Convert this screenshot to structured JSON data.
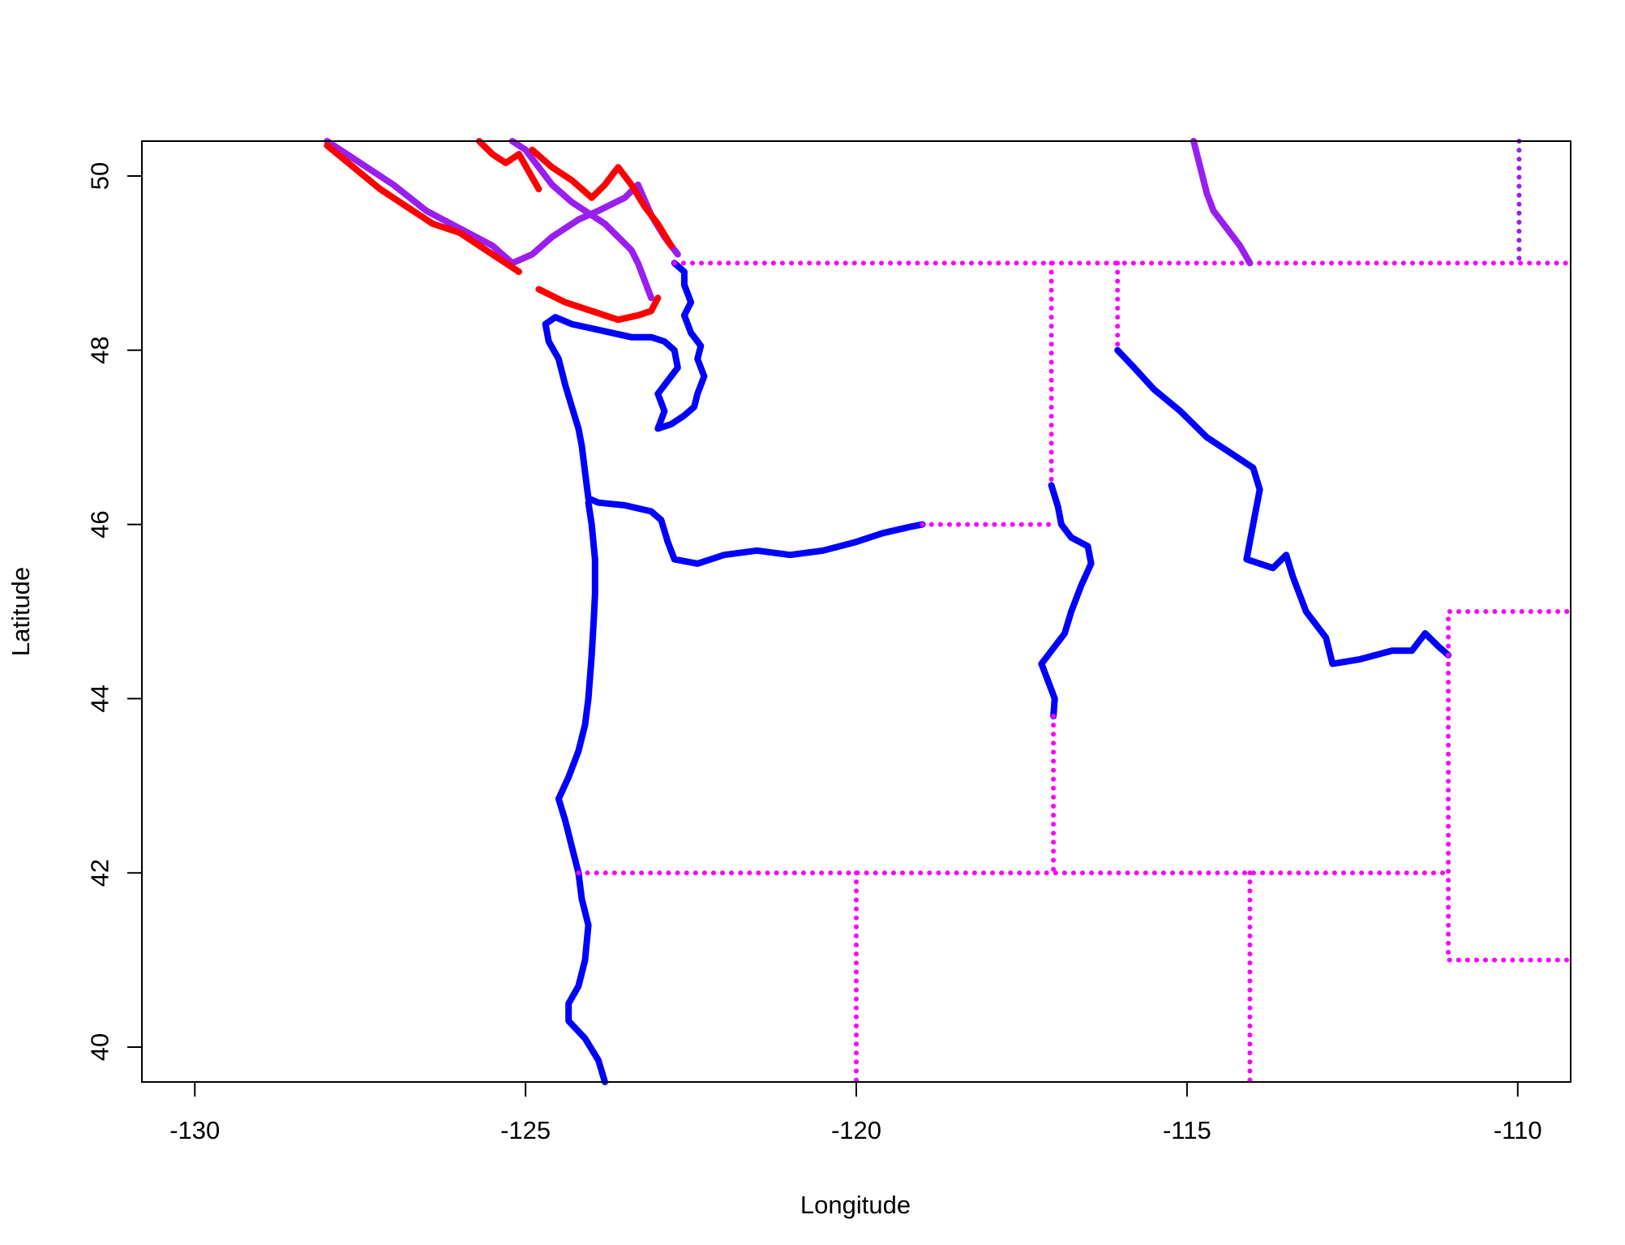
{
  "chart_data": {
    "type": "scatter",
    "title": "",
    "xlabel": "Longitude",
    "ylabel": "Latitude",
    "xlim": [
      -130.8,
      -109.2
    ],
    "ylim": [
      39.6,
      50.4
    ],
    "x_ticks": [
      "-130",
      "-125",
      "-120",
      "-115",
      "-110"
    ],
    "y_ticks": [
      "40",
      "42",
      "44",
      "46",
      "48",
      "50"
    ],
    "grid": false,
    "legend": "none",
    "colors": {
      "red": "#ff0000",
      "purple": "#9a1ef0",
      "magenta": "#ff00ff",
      "blue": "#0000ff"
    },
    "series": [
      {
        "color": "purple",
        "style": "line",
        "points": [
          [
            -128.0,
            50.4
          ],
          [
            -127.5,
            50.15
          ],
          [
            -127.0,
            49.9
          ],
          [
            -126.5,
            49.6
          ],
          [
            -126.0,
            49.4
          ],
          [
            -125.5,
            49.2
          ],
          [
            -125.2,
            49.0
          ],
          [
            -124.9,
            49.1
          ],
          [
            -124.6,
            49.3
          ],
          [
            -124.2,
            49.5
          ],
          [
            -123.9,
            49.6
          ],
          [
            -123.5,
            49.75
          ],
          [
            -123.3,
            49.9
          ],
          [
            -123.1,
            49.55
          ],
          [
            -122.9,
            49.3
          ],
          [
            -122.7,
            49.1
          ]
        ]
      },
      {
        "color": "purple",
        "style": "line",
        "points": [
          [
            -125.2,
            50.4
          ],
          [
            -125.0,
            50.3
          ],
          [
            -124.8,
            50.1
          ],
          [
            -124.6,
            49.9
          ],
          [
            -124.3,
            49.7
          ],
          [
            -124.0,
            49.55
          ],
          [
            -123.8,
            49.45
          ],
          [
            -123.6,
            49.3
          ],
          [
            -123.4,
            49.15
          ],
          [
            -123.3,
            49.0
          ],
          [
            -123.2,
            48.8
          ],
          [
            -123.1,
            48.6
          ]
        ]
      },
      {
        "color": "red",
        "style": "line",
        "points": [
          [
            -128.0,
            50.35
          ],
          [
            -127.6,
            50.1
          ],
          [
            -127.2,
            49.85
          ],
          [
            -126.8,
            49.65
          ],
          [
            -126.4,
            49.45
          ],
          [
            -126.0,
            49.35
          ],
          [
            -125.7,
            49.2
          ],
          [
            -125.4,
            49.05
          ],
          [
            -125.1,
            48.9
          ]
        ]
      },
      {
        "color": "red",
        "style": "line",
        "points": [
          [
            -124.8,
            48.7
          ],
          [
            -124.4,
            48.55
          ],
          [
            -124.0,
            48.45
          ],
          [
            -123.6,
            48.35
          ],
          [
            -123.3,
            48.4
          ],
          [
            -123.1,
            48.45
          ],
          [
            -123.0,
            48.6
          ]
        ]
      },
      {
        "color": "red",
        "style": "line",
        "points": [
          [
            -124.9,
            50.3
          ],
          [
            -124.6,
            50.1
          ],
          [
            -124.3,
            49.95
          ],
          [
            -124.0,
            49.75
          ],
          [
            -123.8,
            49.9
          ],
          [
            -123.6,
            50.1
          ],
          [
            -123.4,
            49.9
          ],
          [
            -123.2,
            49.65
          ],
          [
            -123.0,
            49.45
          ],
          [
            -122.8,
            49.2
          ]
        ]
      },
      {
        "color": "red",
        "style": "line",
        "points": [
          [
            -125.7,
            50.4
          ],
          [
            -125.5,
            50.25
          ],
          [
            -125.3,
            50.15
          ],
          [
            -125.1,
            50.25
          ],
          [
            -124.95,
            50.05
          ],
          [
            -124.8,
            49.85
          ]
        ]
      },
      {
        "color": "blue",
        "style": "line",
        "points": [
          [
            -122.75,
            49.0
          ],
          [
            -122.6,
            48.9
          ],
          [
            -122.6,
            48.75
          ],
          [
            -122.5,
            48.55
          ],
          [
            -122.6,
            48.4
          ],
          [
            -122.5,
            48.2
          ],
          [
            -122.35,
            48.05
          ],
          [
            -122.4,
            47.9
          ],
          [
            -122.3,
            47.7
          ],
          [
            -122.4,
            47.5
          ],
          [
            -122.45,
            47.35
          ],
          [
            -122.6,
            47.25
          ],
          [
            -122.8,
            47.15
          ],
          [
            -123.0,
            47.1
          ],
          [
            -122.9,
            47.3
          ],
          [
            -123.0,
            47.5
          ],
          [
            -122.85,
            47.65
          ],
          [
            -122.7,
            47.8
          ],
          [
            -122.75,
            48.0
          ],
          [
            -122.9,
            48.1
          ],
          [
            -123.1,
            48.15
          ],
          [
            -123.4,
            48.15
          ],
          [
            -123.7,
            48.2
          ],
          [
            -124.0,
            48.25
          ],
          [
            -124.3,
            48.3
          ],
          [
            -124.55,
            48.38
          ],
          [
            -124.7,
            48.3
          ],
          [
            -124.65,
            48.1
          ],
          [
            -124.5,
            47.9
          ],
          [
            -124.4,
            47.6
          ],
          [
            -124.3,
            47.35
          ],
          [
            -124.2,
            47.1
          ],
          [
            -124.15,
            46.9
          ],
          [
            -124.1,
            46.6
          ],
          [
            -124.05,
            46.3
          ],
          [
            -123.9,
            46.25
          ],
          [
            -123.5,
            46.22
          ],
          [
            -123.1,
            46.15
          ],
          [
            -122.95,
            46.05
          ],
          [
            -122.85,
            45.8
          ],
          [
            -122.75,
            45.6
          ],
          [
            -122.4,
            45.55
          ],
          [
            -122.0,
            45.65
          ],
          [
            -121.5,
            45.7
          ],
          [
            -121.0,
            45.65
          ],
          [
            -120.5,
            45.7
          ],
          [
            -120.0,
            45.8
          ],
          [
            -119.6,
            45.9
          ],
          [
            -119.2,
            45.97
          ],
          [
            -119.0,
            46.0
          ]
        ]
      },
      {
        "color": "blue",
        "style": "line",
        "points": [
          [
            -124.05,
            46.25
          ],
          [
            -124.0,
            46.0
          ],
          [
            -123.95,
            45.6
          ],
          [
            -123.95,
            45.2
          ],
          [
            -123.97,
            44.9
          ],
          [
            -124.0,
            44.5
          ],
          [
            -124.05,
            44.0
          ],
          [
            -124.1,
            43.7
          ],
          [
            -124.2,
            43.4
          ],
          [
            -124.35,
            43.1
          ],
          [
            -124.5,
            42.85
          ],
          [
            -124.4,
            42.6
          ],
          [
            -124.3,
            42.3
          ],
          [
            -124.2,
            42.0
          ],
          [
            -124.15,
            41.7
          ],
          [
            -124.05,
            41.4
          ],
          [
            -124.1,
            41.0
          ],
          [
            -124.2,
            40.7
          ],
          [
            -124.35,
            40.5
          ],
          [
            -124.35,
            40.3
          ],
          [
            -124.1,
            40.1
          ],
          [
            -123.9,
            39.85
          ],
          [
            -123.8,
            39.6
          ]
        ]
      },
      {
        "color": "blue",
        "style": "line",
        "points": [
          [
            -117.05,
            46.45
          ],
          [
            -116.95,
            46.2
          ],
          [
            -116.9,
            46.0
          ],
          [
            -116.75,
            45.85
          ],
          [
            -116.5,
            45.75
          ],
          [
            -116.45,
            45.55
          ],
          [
            -116.6,
            45.3
          ],
          [
            -116.75,
            45.0
          ],
          [
            -116.85,
            44.75
          ],
          [
            -117.0,
            44.6
          ],
          [
            -117.2,
            44.4
          ],
          [
            -117.1,
            44.2
          ],
          [
            -117.0,
            44.0
          ],
          [
            -117.02,
            43.8
          ]
        ]
      },
      {
        "color": "blue",
        "style": "line",
        "points": [
          [
            -116.05,
            48.0
          ],
          [
            -115.8,
            47.8
          ],
          [
            -115.5,
            47.55
          ],
          [
            -115.1,
            47.3
          ],
          [
            -114.7,
            47.0
          ],
          [
            -114.3,
            46.8
          ],
          [
            -114.0,
            46.65
          ],
          [
            -113.9,
            46.4
          ],
          [
            -114.0,
            46.0
          ],
          [
            -114.1,
            45.6
          ],
          [
            -113.7,
            45.5
          ],
          [
            -113.5,
            45.65
          ],
          [
            -113.4,
            45.4
          ],
          [
            -113.2,
            45.0
          ],
          [
            -112.9,
            44.7
          ],
          [
            -112.8,
            44.4
          ],
          [
            -112.4,
            44.45
          ],
          [
            -111.9,
            44.55
          ],
          [
            -111.6,
            44.55
          ],
          [
            -111.4,
            44.75
          ],
          [
            -111.2,
            44.6
          ],
          [
            -111.05,
            44.5
          ]
        ]
      },
      {
        "color": "magenta",
        "style": "dotted",
        "points": [
          [
            -122.75,
            49.0
          ],
          [
            -116.05,
            49.0
          ],
          [
            -110.0,
            49.0
          ],
          [
            -109.2,
            49.0
          ]
        ]
      },
      {
        "color": "magenta",
        "style": "dotted",
        "points": [
          [
            -117.05,
            49.0
          ],
          [
            -117.05,
            46.45
          ]
        ]
      },
      {
        "color": "magenta",
        "style": "dotted",
        "points": [
          [
            -116.05,
            49.0
          ],
          [
            -116.05,
            48.0
          ]
        ]
      },
      {
        "color": "magenta",
        "style": "dotted",
        "points": [
          [
            -119.0,
            46.0
          ],
          [
            -117.0,
            46.0
          ]
        ]
      },
      {
        "color": "magenta",
        "style": "dotted",
        "points": [
          [
            -117.02,
            43.8
          ],
          [
            -117.02,
            42.0
          ]
        ]
      },
      {
        "color": "magenta",
        "style": "dotted",
        "points": [
          [
            -124.2,
            42.0
          ],
          [
            -111.05,
            42.0
          ]
        ]
      },
      {
        "color": "magenta",
        "style": "dotted",
        "points": [
          [
            -120.0,
            42.0
          ],
          [
            -120.0,
            39.6
          ]
        ]
      },
      {
        "color": "magenta",
        "style": "dotted",
        "points": [
          [
            -114.05,
            42.0
          ],
          [
            -114.05,
            39.6
          ]
        ]
      },
      {
        "color": "magenta",
        "style": "dotted",
        "points": [
          [
            -111.05,
            44.5
          ],
          [
            -111.05,
            41.0
          ],
          [
            -109.2,
            41.0
          ]
        ]
      },
      {
        "color": "magenta",
        "style": "dotted",
        "points": [
          [
            -111.05,
            44.5
          ],
          [
            -111.05,
            45.0
          ],
          [
            -109.2,
            45.0
          ]
        ]
      },
      {
        "color": "purple",
        "style": "line",
        "points": [
          [
            -114.9,
            50.4
          ],
          [
            -114.8,
            50.1
          ],
          [
            -114.7,
            49.8
          ],
          [
            -114.6,
            49.6
          ],
          [
            -114.4,
            49.4
          ],
          [
            -114.2,
            49.2
          ],
          [
            -114.05,
            49.0
          ]
        ]
      },
      {
        "color": "purple",
        "style": "dotted",
        "points": [
          [
            -109.98,
            50.4
          ],
          [
            -109.98,
            49.0
          ]
        ]
      }
    ]
  }
}
